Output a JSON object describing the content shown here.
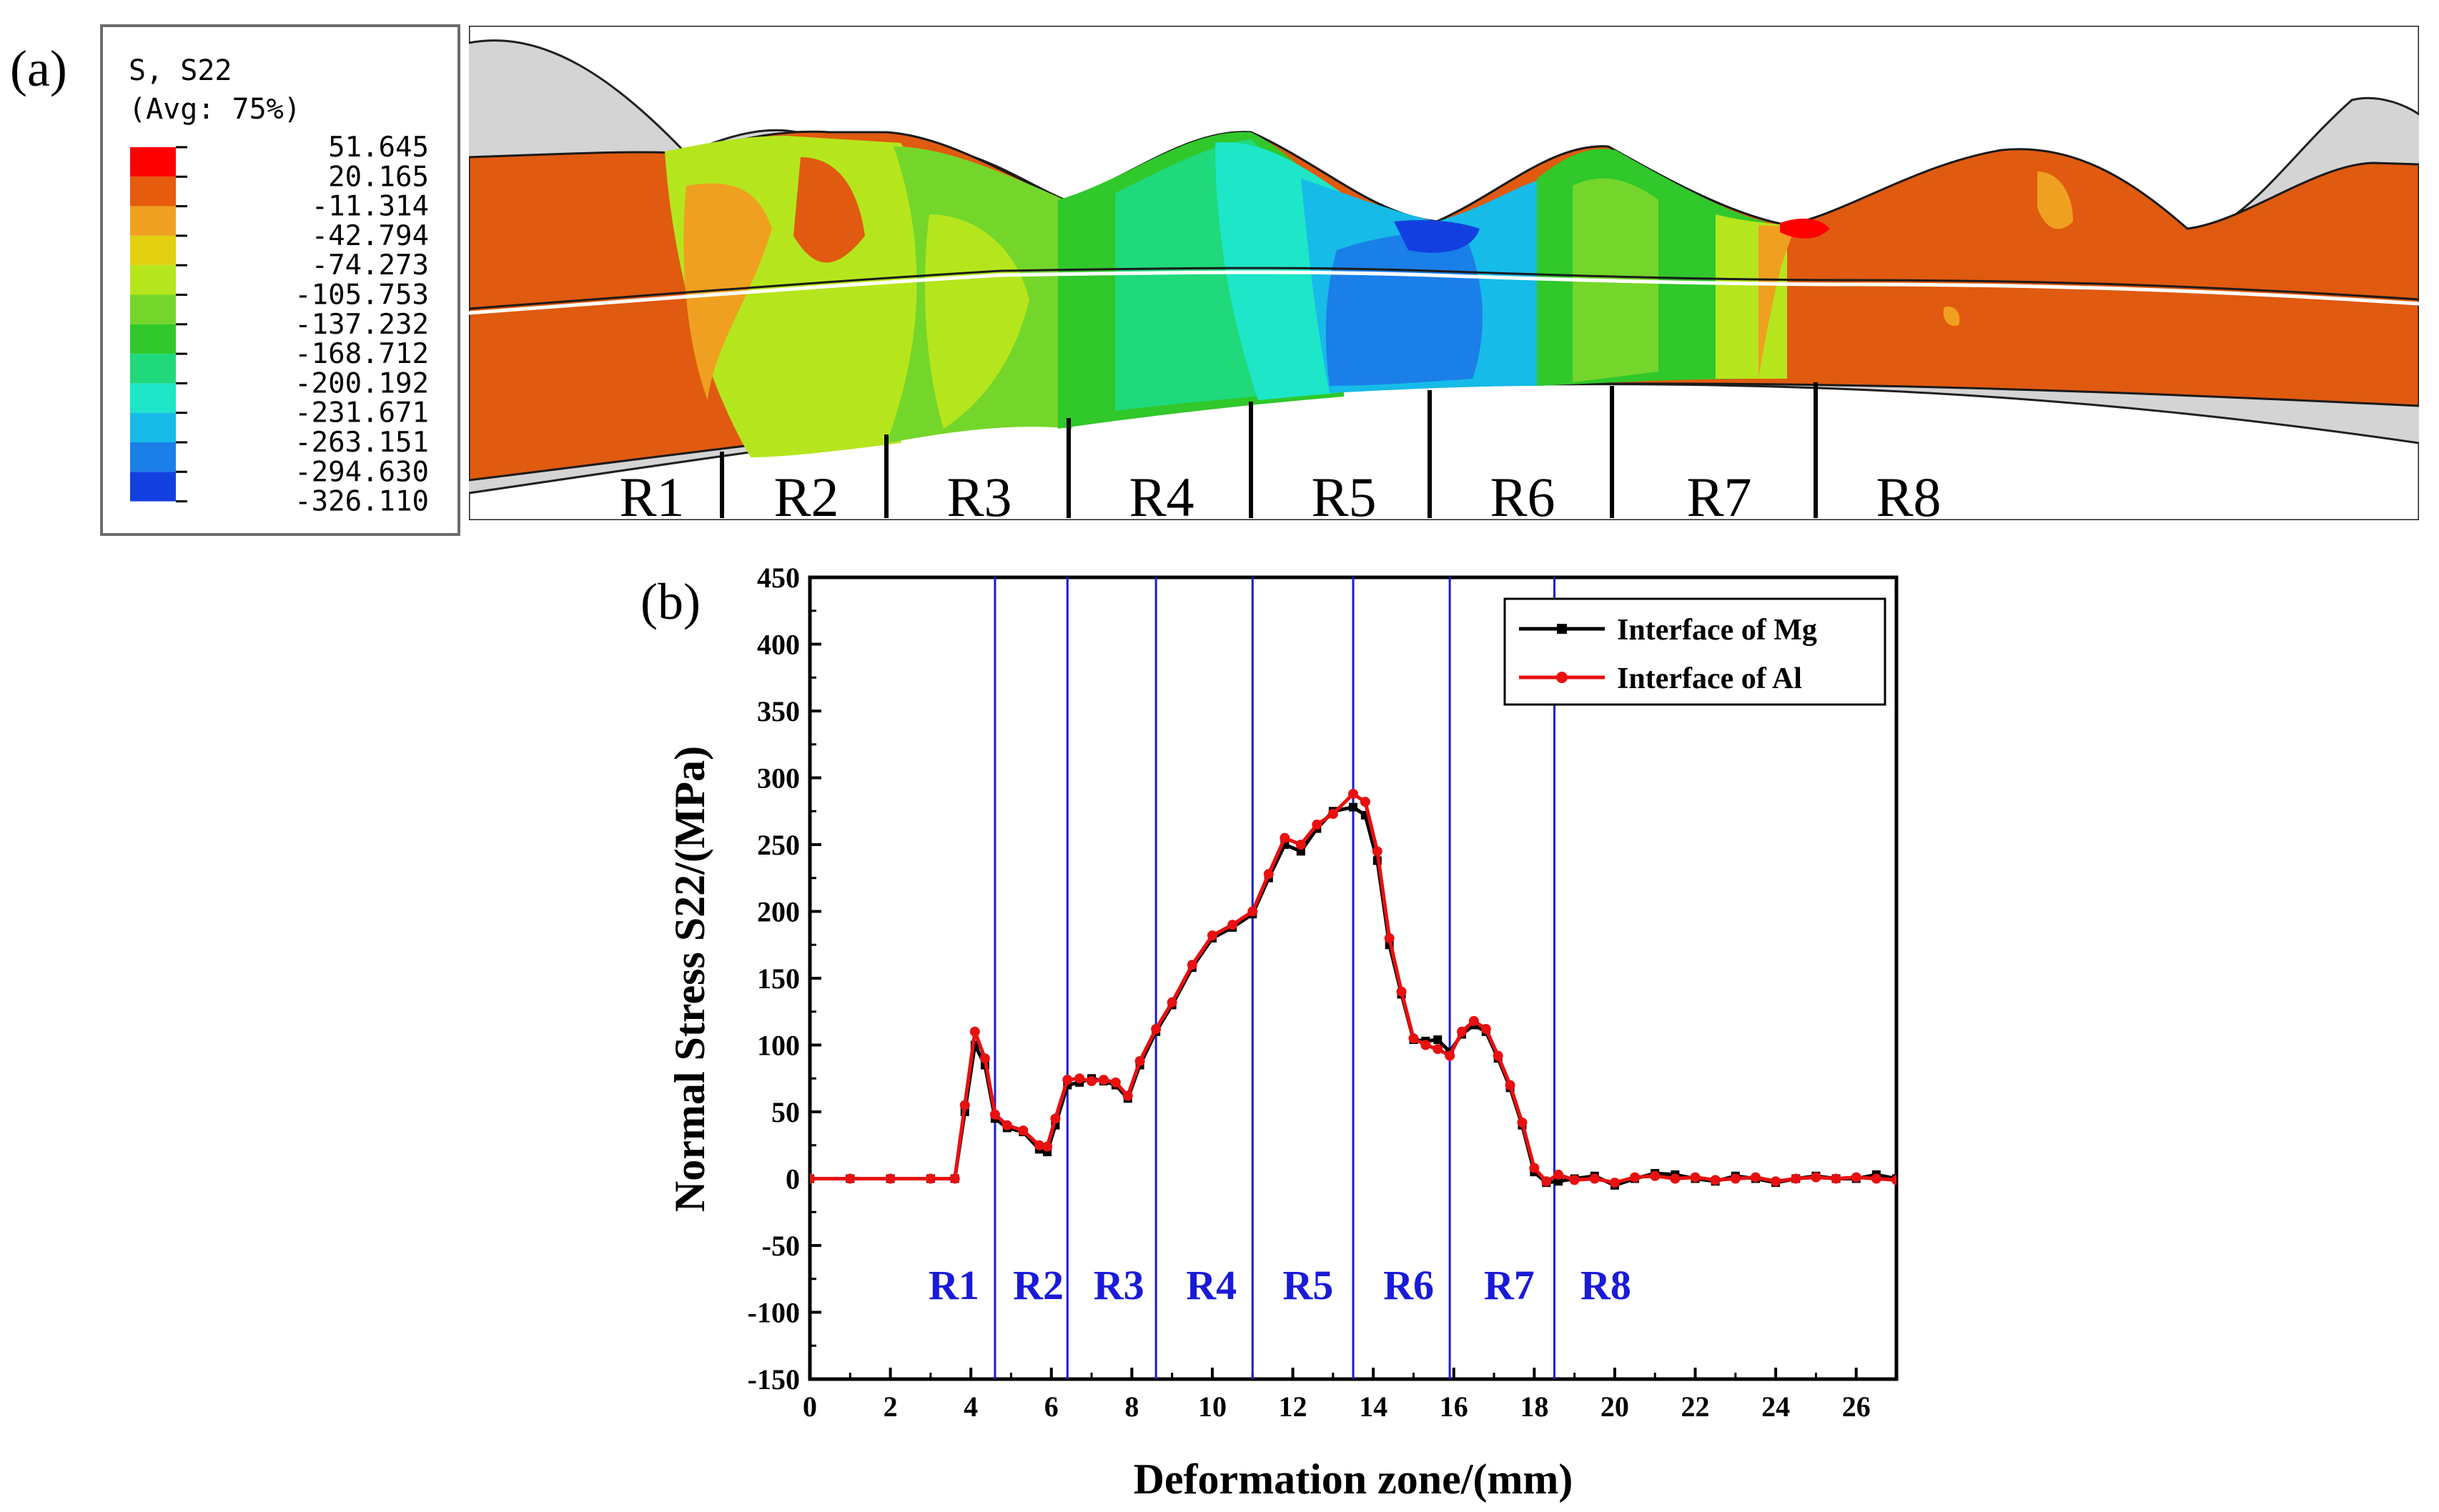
{
  "panel_a": {
    "label": "(a)",
    "legend": {
      "title_line1": "S, S22",
      "title_line2": "(Avg: 75%)",
      "levels": [
        {
          "value": "51.645",
          "color": "#ff0000"
        },
        {
          "value": "20.165",
          "color": "#e65b0c"
        },
        {
          "value": "-11.314",
          "color": "#f0a020"
        },
        {
          "value": "-42.794",
          "color": "#e2d010"
        },
        {
          "value": "-74.273",
          "color": "#b5e61d"
        },
        {
          "value": "-105.753",
          "color": "#74d62a"
        },
        {
          "value": "-137.232",
          "color": "#30c82a"
        },
        {
          "value": "-168.712",
          "color": "#1fd97a"
        },
        {
          "value": "-200.192",
          "color": "#1ee6c8"
        },
        {
          "value": "-231.671",
          "color": "#16bbe8"
        },
        {
          "value": "-263.151",
          "color": "#1a7fe8"
        },
        {
          "value": "-294.630",
          "color": "#1240e0"
        },
        {
          "value": "-326.110",
          "color": "#0010d8"
        }
      ]
    },
    "regions": [
      "R1",
      "R2",
      "R3",
      "R4",
      "R5",
      "R6",
      "R7",
      "R8"
    ]
  },
  "panel_b": {
    "label": "(b)",
    "regions_label_color": "#1a1ad8"
  },
  "chart_data": {
    "type": "line",
    "title": "",
    "xlabel": "Deformation zone/(mm)",
    "ylabel": "Normal Stress S22/(MPa)",
    "xlim": [
      0,
      27
    ],
    "ylim": [
      -150,
      450
    ],
    "x_ticks": [
      "0",
      "2",
      "4",
      "6",
      "8",
      "10",
      "12",
      "14",
      "16",
      "18",
      "20",
      "22",
      "24",
      "26"
    ],
    "y_ticks": [
      "-150",
      "-100",
      "-50",
      "0",
      "50",
      "100",
      "150",
      "200",
      "250",
      "300",
      "350",
      "400",
      "450"
    ],
    "region_boundaries": [
      4.6,
      6.4,
      8.6,
      11.0,
      13.5,
      15.9,
      18.5
    ],
    "region_labels": [
      {
        "text": "R1",
        "x": 3.4
      },
      {
        "text": "R2",
        "x": 5.5
      },
      {
        "text": "R3",
        "x": 7.5
      },
      {
        "text": "R4",
        "x": 9.8
      },
      {
        "text": "R5",
        "x": 12.2
      },
      {
        "text": "R6",
        "x": 14.7
      },
      {
        "text": "R7",
        "x": 17.2
      },
      {
        "text": "R8",
        "x": 19.6
      }
    ],
    "legend_position": "top-right",
    "series": [
      {
        "name": "Interface of Mg",
        "color": "#000000",
        "marker": "square",
        "x": [
          0,
          1,
          2,
          3,
          3.6,
          3.85,
          4.1,
          4.35,
          4.6,
          4.9,
          5.3,
          5.7,
          5.9,
          6.1,
          6.4,
          6.7,
          7.0,
          7.3,
          7.6,
          7.9,
          8.2,
          8.6,
          9.0,
          9.5,
          10.0,
          10.5,
          11.0,
          11.4,
          11.8,
          12.2,
          12.6,
          13.0,
          13.5,
          13.8,
          14.1,
          14.4,
          14.7,
          15.0,
          15.3,
          15.6,
          15.9,
          16.2,
          16.5,
          16.8,
          17.1,
          17.4,
          17.7,
          18.0,
          18.3,
          18.6,
          19.0,
          19.5,
          20.0,
          20.5,
          21.0,
          21.5,
          22.0,
          22.5,
          23.0,
          23.5,
          24.0,
          24.5,
          25.0,
          25.5,
          26.0,
          26.5,
          27.0
        ],
        "y": [
          0,
          0,
          0,
          0,
          0,
          50,
          100,
          85,
          45,
          38,
          35,
          22,
          20,
          40,
          70,
          72,
          75,
          73,
          70,
          60,
          85,
          110,
          130,
          158,
          180,
          188,
          198,
          225,
          250,
          245,
          262,
          275,
          278,
          272,
          238,
          175,
          138,
          104,
          103,
          104,
          95,
          108,
          115,
          110,
          90,
          68,
          40,
          5,
          -3,
          -2,
          0,
          2,
          -5,
          0,
          4,
          3,
          0,
          -2,
          2,
          0,
          -3,
          0,
          2,
          0,
          0,
          3,
          0
        ]
      },
      {
        "name": "Interface of Al",
        "color": "#e81010",
        "marker": "circle",
        "x": [
          0,
          1,
          2,
          3,
          3.6,
          3.85,
          4.1,
          4.35,
          4.6,
          4.9,
          5.3,
          5.7,
          5.9,
          6.1,
          6.4,
          6.7,
          7.0,
          7.3,
          7.6,
          7.9,
          8.2,
          8.6,
          9.0,
          9.5,
          10.0,
          10.5,
          11.0,
          11.4,
          11.8,
          12.2,
          12.6,
          13.0,
          13.5,
          13.8,
          14.1,
          14.4,
          14.7,
          15.0,
          15.3,
          15.6,
          15.9,
          16.2,
          16.5,
          16.8,
          17.1,
          17.4,
          17.7,
          18.0,
          18.3,
          18.6,
          19.0,
          19.5,
          20.0,
          20.5,
          21.0,
          21.5,
          22.0,
          22.5,
          23.0,
          23.5,
          24.0,
          24.5,
          25.0,
          25.5,
          26.0,
          26.5,
          27.0
        ],
        "y": [
          0,
          0,
          0,
          0,
          0,
          55,
          110,
          90,
          48,
          40,
          36,
          25,
          24,
          45,
          74,
          75,
          73,
          74,
          72,
          62,
          88,
          112,
          132,
          160,
          182,
          190,
          200,
          228,
          255,
          250,
          265,
          273,
          288,
          282,
          245,
          180,
          140,
          105,
          100,
          97,
          92,
          110,
          118,
          112,
          92,
          70,
          42,
          8,
          -2,
          3,
          -1,
          0,
          -3,
          1,
          2,
          0,
          1,
          -1,
          0,
          1,
          -2,
          0,
          1,
          0,
          1,
          0,
          -1
        ]
      }
    ]
  }
}
